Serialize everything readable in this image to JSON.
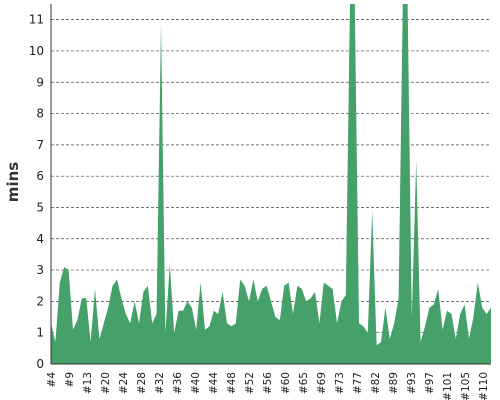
{
  "chart_data": {
    "type": "area",
    "ylabel": "mins",
    "xlabel": "",
    "title": "",
    "ylim": [
      0,
      11.5
    ],
    "yticks": [
      0,
      1,
      2,
      3,
      4,
      5,
      6,
      7,
      8,
      9,
      10,
      11
    ],
    "grid": true,
    "series_color": "#45a069",
    "x_tick_labels": [
      "#4",
      "#9",
      "#13",
      "#20",
      "#24",
      "#28",
      "#32",
      "#36",
      "#40",
      "#44",
      "#48",
      "#52",
      "#56",
      "#60",
      "#65",
      "#69",
      "#73",
      "#77",
      "#82",
      "#89",
      "#93",
      "#97",
      "#101",
      "#105",
      "#110"
    ],
    "series": [
      {
        "values": [
          1.3,
          0.7,
          2.6,
          3.1,
          3.0,
          1.1,
          1.4,
          2.1,
          2.1,
          0.7,
          2.4,
          0.8,
          1.3,
          1.8,
          2.5,
          2.7,
          2.1,
          1.6,
          1.3,
          2.0,
          1.3,
          2.3,
          2.5,
          1.3,
          1.6,
          10.9,
          1.0,
          3.2,
          1.0,
          1.7,
          1.7,
          2.0,
          1.8,
          1.1,
          2.6,
          1.1,
          1.2,
          1.7,
          1.6,
          2.3,
          1.3,
          1.2,
          1.3,
          2.7,
          2.5,
          2.0,
          2.7,
          2.0,
          2.4,
          2.5,
          2.0,
          1.5,
          1.4,
          2.5,
          2.6,
          1.6,
          2.5,
          2.4,
          2.0,
          2.1,
          2.3,
          1.3,
          2.6,
          2.5,
          2.4,
          1.3,
          2.0,
          2.2,
          12.0,
          12.0,
          1.3,
          1.2,
          1.0,
          4.9,
          0.6,
          0.7,
          1.8,
          0.8,
          1.3,
          2.1,
          12.0,
          12.0,
          1.5,
          6.5,
          0.7,
          1.2,
          1.8,
          1.9,
          2.4,
          1.1,
          1.7,
          1.6,
          0.8,
          1.6,
          1.9,
          0.8,
          1.5,
          2.6,
          1.8,
          1.6,
          1.8
        ]
      }
    ]
  }
}
